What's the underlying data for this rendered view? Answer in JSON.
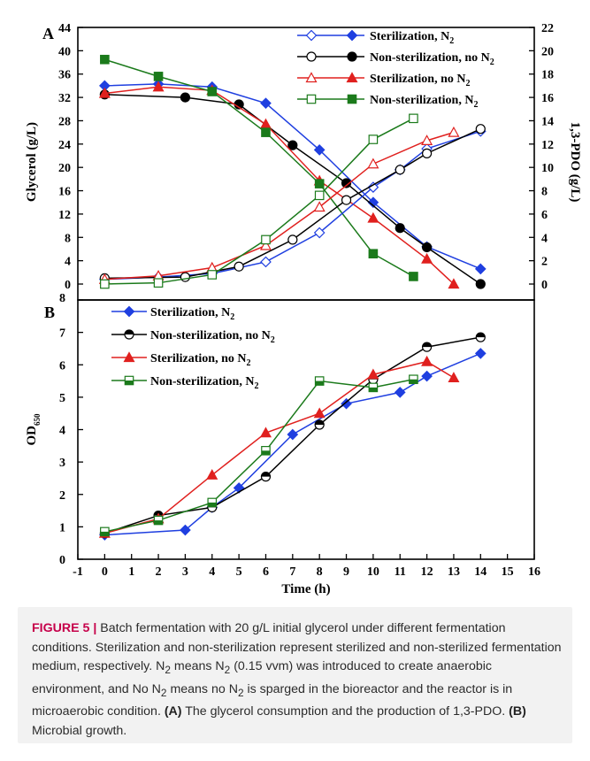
{
  "chart_data": [
    {
      "panel_label": "A",
      "type": "line",
      "xlim": [
        -1,
        16
      ],
      "ylim": [
        0,
        44
      ],
      "y2lim": [
        0,
        22
      ],
      "ylabel": "Glycerol (g/L)",
      "y2label": "1,3-PDO (g/L)",
      "y_ticks": [
        "0",
        "4",
        "8",
        "12",
        "16",
        "20",
        "24",
        "28",
        "32",
        "36",
        "40",
        "44"
      ],
      "y2_ticks": [
        "0",
        "2",
        "4",
        "6",
        "8",
        "10",
        "12",
        "14",
        "16",
        "18",
        "20",
        "22"
      ],
      "legend_position": "top-right",
      "legend": [
        {
          "name": "Sterilization, N",
          "sub": "2",
          "color": "#1f3fe0",
          "open_marker": "diamond",
          "filled_marker": "diamond"
        },
        {
          "name": "Non-sterilization, no N",
          "sub": "2",
          "color": "#000000",
          "open_marker": "circle",
          "filled_marker": "circle"
        },
        {
          "name": "Sterilization, no N",
          "sub": "2",
          "color": "#e0201e",
          "open_marker": "triangle",
          "filled_marker": "triangle"
        },
        {
          "name": "Non-sterilization,  N",
          "sub": "2",
          "color": "#1b7a1b",
          "open_marker": "square",
          "filled_marker": "square"
        }
      ],
      "glycerol_series": [
        {
          "name": "Sterilization, N2",
          "color": "#1f3fe0",
          "marker": "diamond",
          "x": [
            0,
            2,
            4,
            6,
            8,
            10,
            12,
            14
          ],
          "y": [
            34,
            34.3,
            33.8,
            31,
            23,
            14,
            6.4,
            2.6
          ]
        },
        {
          "name": "Non-sterilization, no N2",
          "color": "#000000",
          "marker": "circle",
          "x": [
            0,
            3,
            5,
            7,
            9,
            11,
            12,
            14
          ],
          "y": [
            32.5,
            32,
            30.8,
            23.8,
            17.3,
            9.6,
            6.3,
            0
          ]
        },
        {
          "name": "Sterilization, no N2",
          "color": "#e0201e",
          "marker": "triangle",
          "x": [
            0,
            2,
            4,
            6,
            8,
            10,
            12,
            13
          ],
          "y": [
            32.7,
            33.8,
            33.2,
            27.4,
            17.7,
            11.3,
            4.3,
            0
          ]
        },
        {
          "name": "Non-sterilization, N2",
          "color": "#1b7a1b",
          "marker": "square",
          "x": [
            0,
            2,
            4,
            6,
            8,
            10,
            11.5
          ],
          "y": [
            38.5,
            35.6,
            33,
            26,
            17.2,
            5.2,
            1.3
          ]
        }
      ],
      "pdo_series": [
        {
          "name": "Sterilization, N2",
          "color": "#1f3fe0",
          "marker": "diamond",
          "x": [
            0,
            2,
            4,
            6,
            8,
            10,
            11,
            12,
            14
          ],
          "y": [
            0.4,
            0.6,
            0.9,
            1.9,
            4.4,
            8.3,
            9.8,
            11.6,
            13.1
          ]
        },
        {
          "name": "Non-sterilization, no N2",
          "color": "#000000",
          "marker": "circle",
          "x": [
            0,
            3,
            5,
            7,
            9,
            11,
            12,
            14
          ],
          "y": [
            0.5,
            0.6,
            1.5,
            3.8,
            7.2,
            9.8,
            11.2,
            13.3
          ]
        },
        {
          "name": "Sterilization, no N2",
          "color": "#e0201e",
          "marker": "triangle",
          "x": [
            0,
            2,
            4,
            6,
            8,
            10,
            12,
            13
          ],
          "y": [
            0.4,
            0.7,
            1.4,
            3.3,
            6.6,
            10.3,
            12.3,
            13
          ]
        },
        {
          "name": "Non-sterilization, N2",
          "color": "#1b7a1b",
          "marker": "square",
          "x": [
            0,
            2,
            4,
            6,
            8,
            10,
            11.5
          ],
          "y": [
            0,
            0.1,
            0.8,
            3.8,
            7.6,
            12.4,
            14.2
          ]
        }
      ]
    },
    {
      "panel_label": "B",
      "type": "line",
      "xlim": [
        -1,
        16
      ],
      "ylim": [
        0,
        8
      ],
      "xlabel": "Time (h)",
      "ylabel": "OD",
      "ylabel_sub": "650",
      "x_ticks": [
        "-1",
        "0",
        "1",
        "2",
        "3",
        "4",
        "5",
        "6",
        "7",
        "8",
        "9",
        "10",
        "11",
        "12",
        "13",
        "14",
        "15",
        "16"
      ],
      "y_ticks": [
        "0",
        "1",
        "2",
        "3",
        "4",
        "5",
        "6",
        "7",
        "8"
      ],
      "legend_position": "top-left",
      "legend": [
        {
          "name": "Sterilization, N",
          "sub": "2",
          "color": "#1f3fe0",
          "marker": "diamond"
        },
        {
          "name": "Non-sterilization, no N",
          "sub": "2",
          "color": "#000000",
          "marker": "half-circle"
        },
        {
          "name": "Sterilization, no N",
          "sub": "2",
          "color": "#e0201e",
          "marker": "triangle"
        },
        {
          "name": "Non-sterilization, N",
          "sub": "2",
          "color": "#1b7a1b",
          "marker": "half-square"
        }
      ],
      "series": [
        {
          "name": "Sterilization, N2",
          "color": "#1f3fe0",
          "marker": "diamond",
          "x": [
            0,
            3,
            4,
            5,
            7,
            9,
            11,
            12,
            14
          ],
          "y": [
            0.75,
            0.9,
            1.6,
            2.2,
            3.85,
            4.8,
            5.15,
            5.65,
            6.35
          ]
        },
        {
          "name": "Non-sterilization, no N2",
          "color": "#000000",
          "marker": "half-circle",
          "x": [
            0,
            2,
            4,
            6,
            8,
            10,
            12,
            14
          ],
          "y": [
            0.8,
            1.35,
            1.6,
            2.55,
            4.15,
            5.55,
            6.55,
            6.85
          ]
        },
        {
          "name": "Sterilization, no N2",
          "color": "#e0201e",
          "marker": "triangle",
          "x": [
            0,
            2,
            4,
            6,
            8,
            10,
            12,
            13
          ],
          "y": [
            0.8,
            1.25,
            2.6,
            3.9,
            4.5,
            5.7,
            6.1,
            5.6
          ]
        },
        {
          "name": "Non-sterilization, N2",
          "color": "#1b7a1b",
          "marker": "half-square",
          "x": [
            0,
            2,
            4,
            6,
            8,
            10,
            11.5
          ],
          "y": [
            0.85,
            1.2,
            1.75,
            3.35,
            5.5,
            5.3,
            5.55
          ]
        }
      ]
    }
  ],
  "caption": {
    "figure_label": "FIGURE 5 |",
    "line1": " Batch fermentation with 20 g/L initial glycerol under different fermentation conditions. Sterilization and non-sterilization represent sterilized and non-sterilized fermentation medium, respectively. ",
    "n": "N",
    "sub": "2",
    "means_text": " means ",
    "vvm_text": " (0.15 vvm) was introduced to create anaerobic environment, and No ",
    "sparged_text": " means no ",
    "tail_text": " is sparged in the bioreactor and the reactor is in microaerobic condition. ",
    "a_label": "(A)",
    "a_text": " The glycerol consumption and the production of 1,3-PDO. ",
    "b_label": "(B)",
    "b_text": " Microbial growth."
  }
}
